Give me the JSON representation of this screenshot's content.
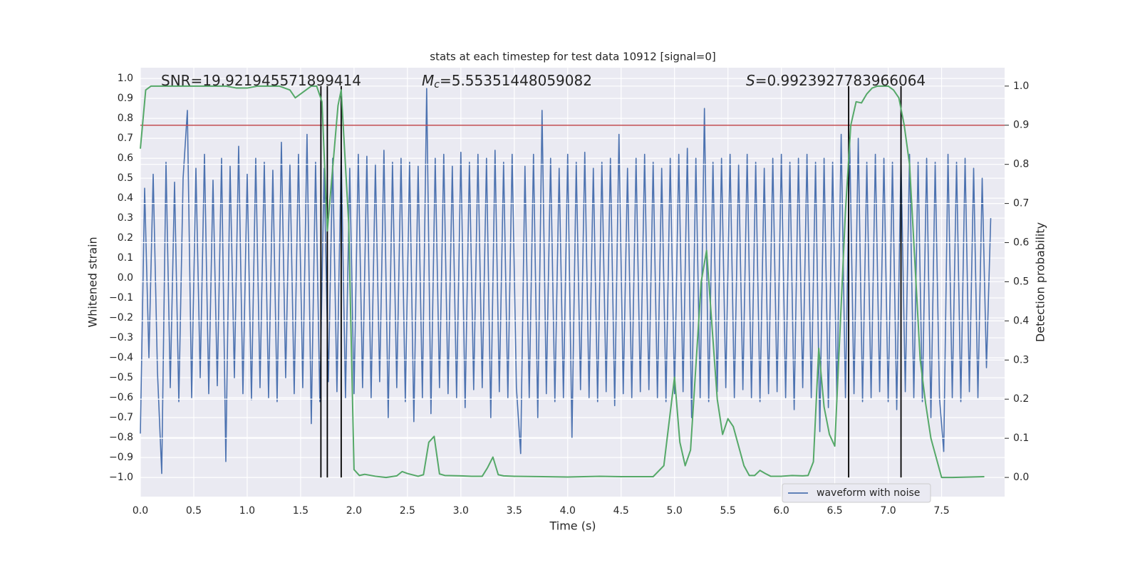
{
  "chart_data": {
    "type": "line",
    "title": "stats at each timestep for test data 10912 [signal=0]",
    "xlabel": "Time (s)",
    "ylabel": "Whitened strain",
    "y2label": "Detection probability",
    "annotations": [
      {
        "text": "SNR=19.921945571899414"
      },
      {
        "symbol": "M",
        "subscript": "c",
        "text": "=5.55351448059082"
      },
      {
        "symbol": "S",
        "text": "=0.9923927783966064"
      }
    ],
    "xlim": [
      0,
      8.09
    ],
    "ylim": [
      -1.096,
      1.054
    ],
    "y2lim": [
      -0.049,
      1.047
    ],
    "xticks": [
      {
        "value": 0,
        "label": "0.0"
      },
      0.5,
      {
        "value": 1,
        "label": "1.0"
      },
      1.5,
      {
        "value": 2,
        "label": "2.0"
      },
      2.5,
      {
        "value": 3,
        "label": "3.0"
      },
      3.5,
      {
        "value": 4,
        "label": "4.0"
      },
      4.5,
      {
        "value": 5,
        "label": "5.0"
      },
      5.5,
      {
        "value": 6,
        "label": "6.0"
      },
      6.5,
      {
        "value": 7,
        "label": "7.0"
      },
      7.5
    ],
    "yticks": [
      {
        "value": 1,
        "label": "1.0"
      },
      0.9,
      0.8,
      0.7,
      0.6,
      0.5,
      0.4,
      0.3,
      0.2,
      0.1,
      {
        "value": 0,
        "label": "0.0"
      },
      {
        "value": -0.1,
        "label": "−0.1"
      },
      {
        "value": -0.2,
        "label": "−0.2"
      },
      {
        "value": -0.3,
        "label": "−0.3"
      },
      {
        "value": -0.4,
        "label": "−0.4"
      },
      {
        "value": -0.5,
        "label": "−0.5"
      },
      {
        "value": -0.6,
        "label": "−0.6"
      },
      {
        "value": -0.7,
        "label": "−0.7"
      },
      {
        "value": -0.8,
        "label": "−0.8"
      },
      {
        "value": -0.9,
        "label": "−0.9"
      },
      {
        "value": -1,
        "label": "−1.0"
      }
    ],
    "y2ticks": [
      {
        "value": 0,
        "label": "0.0"
      },
      0.1,
      0.2,
      0.3,
      0.4,
      0.5,
      0.6,
      0.7,
      0.8,
      0.9,
      {
        "value": 1,
        "label": "1.0"
      }
    ],
    "grid": true,
    "legend": "lower right",
    "series": [
      {
        "name": "waveform with noise",
        "color": "#4c72b0",
        "x": [
          0,
          0.04,
          0.08,
          0.12,
          0.16,
          0.2,
          0.24,
          0.28,
          0.32,
          0.36,
          0.4,
          0.44,
          0.48,
          0.52,
          0.56,
          0.6,
          0.64,
          0.68,
          0.72,
          0.76,
          0.8,
          0.84,
          0.88,
          0.92,
          0.96,
          1,
          1.04,
          1.08,
          1.12,
          1.16,
          1.2,
          1.24,
          1.28,
          1.32,
          1.36,
          1.4,
          1.44,
          1.48,
          1.52,
          1.56,
          1.6,
          1.64,
          1.68,
          1.72,
          1.76,
          1.8,
          1.84,
          1.88,
          1.92,
          1.96,
          2,
          2.04,
          2.08,
          2.12,
          2.16,
          2.2,
          2.24,
          2.28,
          2.32,
          2.36,
          2.4,
          2.44,
          2.48,
          2.52,
          2.56,
          2.6,
          2.64,
          2.68,
          2.72,
          2.76,
          2.8,
          2.84,
          2.88,
          2.92,
          2.96,
          3,
          3.04,
          3.08,
          3.12,
          3.16,
          3.2,
          3.24,
          3.28,
          3.32,
          3.36,
          3.4,
          3.44,
          3.48,
          3.52,
          3.56,
          3.6,
          3.64,
          3.68,
          3.72,
          3.76,
          3.8,
          3.84,
          3.88,
          3.92,
          3.96,
          4,
          4.04,
          4.08,
          4.12,
          4.16,
          4.2,
          4.24,
          4.28,
          4.32,
          4.36,
          4.4,
          4.44,
          4.48,
          4.52,
          4.56,
          4.6,
          4.64,
          4.68,
          4.72,
          4.76,
          4.8,
          4.84,
          4.88,
          4.92,
          4.96,
          5,
          5.04,
          5.08,
          5.12,
          5.16,
          5.2,
          5.24,
          5.28,
          5.32,
          5.36,
          5.4,
          5.44,
          5.48,
          5.52,
          5.56,
          5.6,
          5.64,
          5.68,
          5.72,
          5.76,
          5.8,
          5.84,
          5.88,
          5.92,
          5.96,
          6,
          6.04,
          6.08,
          6.12,
          6.16,
          6.2,
          6.24,
          6.28,
          6.32,
          6.36,
          6.4,
          6.44,
          6.48,
          6.52,
          6.56,
          6.6,
          6.64,
          6.68,
          6.72,
          6.76,
          6.8,
          6.84,
          6.88,
          6.92,
          6.96,
          7,
          7.04,
          7.08,
          7.12,
          7.16,
          7.2,
          7.24,
          7.28,
          7.32,
          7.36,
          7.4,
          7.44,
          7.48,
          7.52,
          7.56,
          7.6,
          7.64,
          7.68,
          7.72,
          7.76,
          7.8,
          7.84,
          7.88,
          7.92,
          7.96
        ],
        "values": [
          -0.78,
          0.45,
          -0.4,
          0.52,
          -0.47,
          -0.98,
          0.58,
          -0.55,
          0.48,
          -0.62,
          0.5,
          0.84,
          -0.6,
          0.55,
          -0.5,
          0.62,
          -0.58,
          0.49,
          -0.54,
          0.6,
          -0.92,
          0.56,
          -0.5,
          0.66,
          -0.58,
          0.52,
          -0.61,
          0.6,
          -0.55,
          0.58,
          -0.6,
          0.54,
          -0.62,
          0.68,
          -0.5,
          0.57,
          -0.58,
          0.62,
          -0.55,
          0.72,
          -0.73,
          0.58,
          -0.62,
          0.55,
          -0.52,
          0.6,
          -0.57,
          0.63,
          -0.6,
          0.55,
          -0.58,
          0.62,
          -0.55,
          0.61,
          -0.6,
          0.57,
          -0.52,
          0.64,
          -0.7,
          0.58,
          -0.55,
          0.6,
          -0.62,
          0.58,
          -0.72,
          0.56,
          -0.6,
          0.95,
          -0.68,
          0.6,
          -0.55,
          0.62,
          -0.58,
          0.56,
          -0.6,
          0.63,
          -0.65,
          0.58,
          -0.56,
          0.62,
          -0.55,
          0.6,
          -0.7,
          0.64,
          -0.57,
          0.58,
          -0.6,
          0.62,
          -0.55,
          -0.88,
          0.56,
          -0.6,
          0.62,
          -0.7,
          0.84,
          -0.58,
          0.6,
          -0.62,
          0.55,
          -0.6,
          0.62,
          -0.8,
          0.58,
          -0.56,
          0.63,
          -0.6,
          0.55,
          -0.62,
          0.58,
          -0.57,
          0.6,
          -0.64,
          0.72,
          -0.58,
          0.55,
          -0.6,
          0.6,
          -0.57,
          0.62,
          -0.56,
          0.58,
          -0.6,
          0.55,
          -0.62,
          0.6,
          -0.58,
          0.62,
          -0.57,
          0.65,
          -0.7,
          0.6,
          -0.6,
          0.85,
          -0.62,
          0.58,
          -0.57,
          0.6,
          -0.55,
          0.62,
          -0.6,
          0.57,
          -0.56,
          0.62,
          -0.6,
          0.58,
          -0.62,
          0.55,
          -0.58,
          0.6,
          -0.57,
          0.62,
          -0.6,
          0.58,
          -0.66,
          0.6,
          -0.55,
          0.62,
          -0.6,
          0.58,
          -0.77,
          0.6,
          -0.65,
          0.58,
          -0.62,
          0.72,
          -0.6,
          0.68,
          -0.58,
          0.7,
          -0.62,
          0.58,
          -0.6,
          0.62,
          -0.57,
          0.6,
          -0.62,
          0.58,
          -0.66,
          0.6,
          -0.57,
          0.62,
          -0.6,
          0.58,
          -0.62,
          0.6,
          -0.7,
          0.58,
          -0.6,
          -0.87,
          0.62,
          -0.6,
          0.58,
          -0.62,
          0.6,
          -0.57,
          0.55,
          -0.6,
          0.5,
          -0.45,
          0.3
        ]
      },
      {
        "color": "#55a868",
        "axis": "y2",
        "x": [
          0,
          0.05,
          0.1,
          0.2,
          0.5,
          0.8,
          0.9,
          1,
          1.1,
          1.3,
          1.4,
          1.45,
          1.5,
          1.6,
          1.65,
          1.7,
          1.75,
          1.8,
          1.85,
          1.88,
          1.95,
          2,
          2.05,
          2.1,
          2.2,
          2.3,
          2.4,
          2.45,
          2.5,
          2.6,
          2.65,
          2.7,
          2.75,
          2.8,
          2.85,
          3,
          3.1,
          3.2,
          3.25,
          3.3,
          3.35,
          3.4,
          3.5,
          4,
          4.3,
          4.5,
          4.7,
          4.8,
          4.9,
          5,
          5.05,
          5.1,
          5.15,
          5.25,
          5.3,
          5.4,
          5.45,
          5.5,
          5.55,
          5.65,
          5.7,
          5.75,
          5.8,
          5.85,
          5.9,
          6,
          6.1,
          6.2,
          6.25,
          6.3,
          6.35,
          6.4,
          6.45,
          6.5,
          6.6,
          6.65,
          6.7,
          6.75,
          6.8,
          6.85,
          6.9,
          7,
          7.05,
          7.1,
          7.15,
          7.2,
          7.3,
          7.35,
          7.4,
          7.45,
          7.5,
          7.6,
          7.9
        ],
        "values": [
          0.84,
          0.99,
          1,
          1,
          1,
          1,
          0.995,
          0.995,
          1,
          1,
          0.99,
          0.97,
          0.98,
          1,
          1,
          0.96,
          0.63,
          0.79,
          0.95,
          0.99,
          0.65,
          0.02,
          0.005,
          0.008,
          0.003,
          0,
          0.004,
          0.015,
          0.01,
          0.003,
          0.007,
          0.09,
          0.105,
          0.009,
          0.005,
          0.004,
          0.003,
          0.003,
          0.025,
          0.052,
          0.007,
          0.004,
          0.003,
          0.001,
          0.003,
          0.002,
          0.002,
          0.002,
          0.03,
          0.256,
          0.09,
          0.03,
          0.07,
          0.5,
          0.58,
          0.2,
          0.11,
          0.15,
          0.13,
          0.03,
          0.005,
          0.005,
          0.018,
          0.01,
          0.003,
          0.003,
          0.005,
          0.004,
          0.005,
          0.04,
          0.33,
          0.18,
          0.11,
          0.08,
          0.68,
          0.9,
          0.96,
          0.957,
          0.98,
          0.995,
          1,
          1,
          0.99,
          0.97,
          0.9,
          0.8,
          0.3,
          0.19,
          0.1,
          0.05,
          0,
          0,
          0.002
        ]
      }
    ],
    "vlines": [
      1.69,
      1.75,
      1.88,
      6.63,
      7.12
    ],
    "vline_color": "#000000",
    "hline": 0.9,
    "hline_color": "#c44e52"
  }
}
